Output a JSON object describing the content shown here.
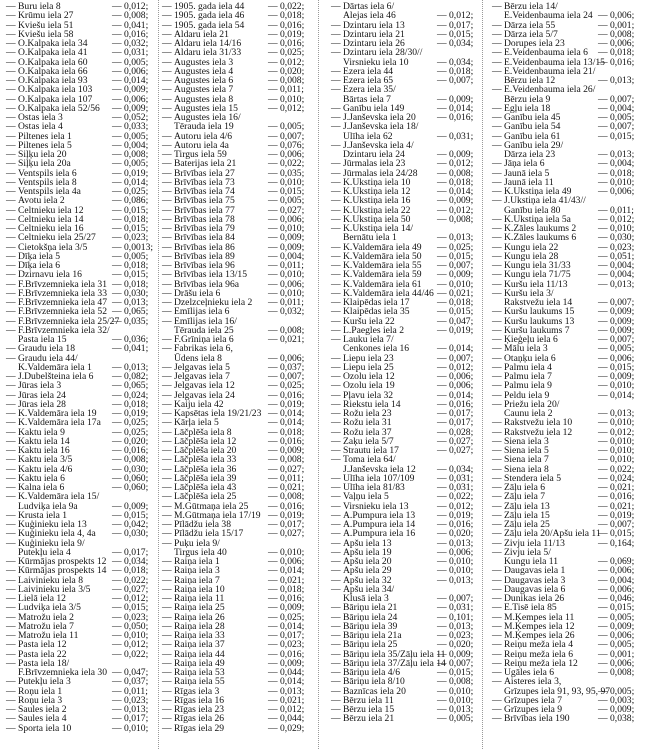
{
  "dash": "—",
  "columns": [
    [
      [
        "Buru iela 8",
        "0,012"
      ],
      [
        "Krūmu iela 27",
        "0,008"
      ],
      [
        "Kviešu iela 51",
        "0,041"
      ],
      [
        "Kviešu iela 58",
        "0,016"
      ],
      [
        "O.Kalpaka iela 34",
        "0,032"
      ],
      [
        "O.Kalpaka iela 41",
        "0,031"
      ],
      [
        "O.Kalpaka iela 60",
        "0,005"
      ],
      [
        "O.Kalpaka iela 66",
        "0,006"
      ],
      [
        "O.Kalpaka iela 93",
        "0,014"
      ],
      [
        "O.Kalpaka iela 103",
        "0,009"
      ],
      [
        "O.Kalpaka iela 107",
        "0,006"
      ],
      [
        "O.Kalpaka iela 52/56",
        "0,009"
      ],
      [
        "Ostas iela 3",
        "0,052"
      ],
      [
        "Ostas iela 4",
        "0,033"
      ],
      [
        "Piltenes iela 1",
        "0,005"
      ],
      [
        "Piltenes iela 5",
        "0,004"
      ],
      [
        "Siļķu iela 20",
        "0,008"
      ],
      [
        "Siļķu iela 20a",
        "0,005"
      ],
      [
        "Ventspils iela 6",
        "0,019"
      ],
      [
        "Ventspils iela 8",
        "0,014"
      ],
      [
        "Ventspils iela 4a",
        "0,025"
      ],
      [
        "Avotu iela 2",
        "0,086"
      ],
      [
        "Celtnieku iela 12",
        "0,015"
      ],
      [
        "Celtnieku iela 14",
        "0,018"
      ],
      [
        "Celtnieku iela 16",
        "0,015"
      ],
      [
        "Celtnieku iela 25/27",
        "0,023"
      ],
      [
        "Cietokšņa iela 3/5",
        "0,0013"
      ],
      [
        "Dīķa iela 5",
        "0,005"
      ],
      [
        "Dīķa iela 6",
        "0,018"
      ],
      [
        "Dzirnavu iela 16",
        "0,015"
      ],
      [
        "F.Brīvzemnieka iela 31",
        "0,018"
      ],
      [
        "F.Brīvzemnieka iela 33",
        "0,030"
      ],
      [
        "F.Brīvzemnieka iela 47",
        "0,013"
      ],
      [
        "F.Brīvzemnieka iela 52",
        "0,065"
      ],
      [
        "F.Brīvzemnieka iela 25/27",
        "0,035"
      ],
      [
        "F.Brīvzemnieka iela 32/",
        "Pasta iela 15",
        "0,036"
      ],
      [
        "Graudu iela 18",
        "0,041"
      ],
      [
        "Graudu iela 44/",
        "K.Valdemāra iela 1",
        "0,013"
      ],
      [
        "J.Dubelšteina iela 6",
        "0,082"
      ],
      [
        "Jūras iela 3",
        "0,065"
      ],
      [
        "Jūras iela 24",
        "0,024"
      ],
      [
        "Jūras iela 28",
        "0,018"
      ],
      [
        "K.Valdemāra iela 19",
        "0,019"
      ],
      [
        "K.Valdemāra iela 17a",
        "0,025"
      ],
      [
        "Kaktu iela 9",
        "0,025"
      ],
      [
        "Kaktu iela 14",
        "0,020"
      ],
      [
        "Kaktu iela 16",
        "0,016"
      ],
      [
        "Kaktu iela 3/5",
        "0,008"
      ],
      [
        "Kaktu iela 4/6",
        "0,030"
      ],
      [
        "Kaktu iela 6",
        "0,060"
      ],
      [
        "Kalna iela 6",
        "0,060"
      ],
      [
        "K.Valdemāra iela 15/",
        "Ludviķa iela 9a",
        "0,009"
      ],
      [
        "Krusta iela 1",
        "0,015"
      ],
      [
        "Kuģinieku iela 13",
        "0,042"
      ],
      [
        "Kuģinieku iela 4, 4a",
        "0,030"
      ],
      [
        "Kuģinieku iela 9/",
        "Putekļu iela 4",
        "0,017"
      ],
      [
        "Kūrmājas prospekts 12",
        "0,034"
      ],
      [
        "Kūrmājas prospekts 14",
        "0,018"
      ],
      [
        "Laivinieku iela 8",
        "0,022"
      ],
      [
        "Laivinieku iela 3/5",
        "0,027"
      ],
      [
        "Lielā iela 12",
        "0,012"
      ],
      [
        "Ludviķa iela 3/5",
        "0,015"
      ],
      [
        "Matrožu iela 2",
        "0,023"
      ],
      [
        "Matrožu iela 7",
        "0,050"
      ],
      [
        "Matrožu iela 11",
        "0,010"
      ],
      [
        "Pasta iela 12",
        "0,012"
      ],
      [
        "Pasta iela 22",
        "0,022"
      ],
      [
        "Pasta iela 18/",
        "F.Brīvzemnieka iela 30",
        "0,047"
      ],
      [
        "Putekļu iela 3",
        "0,037"
      ],
      [
        "Roņu iela 1",
        "0,011"
      ],
      [
        "Roņu iela 3",
        "0,023"
      ],
      [
        "Saules iela 2",
        "0,013"
      ],
      [
        "Saules iela 4",
        "0,017"
      ],
      [
        "Sporta iela 10",
        "0,010"
      ]
    ],
    [
      [
        "1905. gada iela 44",
        "0,022"
      ],
      [
        "1905. gada iela 46",
        "0,018"
      ],
      [
        "1905. gada iela 54",
        "0,016"
      ],
      [
        "Aldaru iela 21",
        "0,019"
      ],
      [
        "Aldaru iela 14/16",
        "0,016"
      ],
      [
        "Aldaru iela 31/33",
        "0,025"
      ],
      [
        "Augustes iela 3",
        "0,012"
      ],
      [
        "Augustes iela 4",
        "0,020"
      ],
      [
        "Augustes iela 6",
        "0,008"
      ],
      [
        "Augustes iela 7",
        "0,011"
      ],
      [
        "Augustes iela 8",
        "0,010"
      ],
      [
        "Augustes iela 15",
        "0,012"
      ],
      [
        "Augustes iela 16/",
        "Tērauda iela 19",
        "0,005"
      ],
      [
        "Autoru iela 4/6",
        "0,007"
      ],
      [
        "Autoru iela 4a",
        "0,076"
      ],
      [
        "Tirgus iela 59",
        "0,006"
      ],
      [
        "Baterijas iela 21",
        "0,022"
      ],
      [
        "Brīvības iela 27",
        "0,035"
      ],
      [
        "Brīvības iela 73",
        "0,010"
      ],
      [
        "Brīvības iela 74",
        "0,015"
      ],
      [
        "Brīvības iela 75",
        "0,005"
      ],
      [
        "Brīvības iela 77",
        "0,027"
      ],
      [
        "Brīvības iela 78",
        "0,006"
      ],
      [
        "Brīvības iela 79",
        "0,010"
      ],
      [
        "Brīvības iela 84",
        "0,009"
      ],
      [
        "Brīvības iela 86",
        "0,009"
      ],
      [
        "Brīvības iela 89",
        "0,004"
      ],
      [
        "Brīvības iela 96",
        "0,011"
      ],
      [
        "Brīvības iela 13/15",
        "0,010"
      ],
      [
        "Brīvības iela 96a",
        "0,006"
      ],
      [
        "Drāšu iela 6",
        "0,010"
      ],
      [
        "Dzelzceļnieku iela 2",
        "0,011"
      ],
      [
        "Emīlijas iela 6",
        "0,032"
      ],
      [
        "Emīlijas iela 16/",
        "Tērauda iela 25",
        "0,008"
      ],
      [
        "F.Grīniņa iela 6",
        "0,021"
      ],
      [
        "Fabrikas iela 6,",
        "Ūdens iela 8",
        "0,006"
      ],
      [
        "Jelgavas iela 5",
        "0,037"
      ],
      [
        "Jelgavas iela 7",
        "0,007"
      ],
      [
        "Jelgavas iela 12",
        "0,025"
      ],
      [
        "Jelgavas iela 24",
        "0,016"
      ],
      [
        "Kaiju iela 42",
        "0,019"
      ],
      [
        "Kapsētas iela 19/21/23",
        "0,014"
      ],
      [
        "Kārļa iela 5",
        "0,014"
      ],
      [
        "Lāčplēša iela 8",
        "0,018"
      ],
      [
        "Lāčplēša iela 12",
        "0,016"
      ],
      [
        "Lāčplēša iela 20",
        "0,009"
      ],
      [
        "Lāčplēša iela 33",
        "0,008"
      ],
      [
        "Lāčplēša iela 36",
        "0,027"
      ],
      [
        "Lāčplēša iela 39",
        "0,011"
      ],
      [
        "Lāčplēša iela 43",
        "0,021"
      ],
      [
        "Lāčplēša iela 25",
        "0,008"
      ],
      [
        "M.Gūtmaņa iela 25",
        "0,016"
      ],
      [
        "M.Gūtmaņa iela 17/19",
        "0,019"
      ],
      [
        "Pīlādžu iela 38",
        "0,017"
      ],
      [
        "Pīlādžu iela 15/17",
        "0,027"
      ],
      [
        "Puķu iela 9/",
        "Tirgus iela 40",
        "0,010"
      ],
      [
        "Raiņa iela 1",
        "0,006"
      ],
      [
        "Raiņa iela 3",
        "0,014"
      ],
      [
        "Raiņa iela 7",
        "0,021"
      ],
      [
        "Raiņa iela 10",
        "0,018"
      ],
      [
        "Raiņa iela 11",
        "0,016"
      ],
      [
        "Raiņa iela 25",
        "0,009"
      ],
      [
        "Raiņa iela 26",
        "0,025"
      ],
      [
        "Raiņa iela 28",
        "0,014"
      ],
      [
        "Raiņa iela 33",
        "0,017"
      ],
      [
        "Raiņa iela 37",
        "0,023"
      ],
      [
        "Raiņa iela 44",
        "0,016"
      ],
      [
        "Raiņa iela 49",
        "0,009"
      ],
      [
        "Raiņa iela 53",
        "0,044"
      ],
      [
        "Raiņa iela 55",
        "0,014"
      ],
      [
        "Rīgas iela 3",
        "0,013"
      ],
      [
        "Rīgas iela 16",
        "0,021"
      ],
      [
        "Rīgas iela 23",
        "0,012"
      ],
      [
        "Rīgas iela 26",
        "0,044"
      ],
      [
        "Rīgas iela 29",
        "0,029"
      ]
    ],
    [
      [
        "Dārtas iela 6/",
        "Alejas iela 46",
        "0,012"
      ],
      [
        "Dzintaru iela 13",
        "0,017"
      ],
      [
        "Dzintaru iela 21",
        "0,015"
      ],
      [
        "Dzintaru iela 26",
        "0,034"
      ],
      [
        "Dzintaru iela 28/30//",
        "Virsnieku iela 10",
        "0,034"
      ],
      [
        "Ezera iela 44",
        "0,018"
      ],
      [
        "Ezera iela 65",
        "0,007"
      ],
      [
        "Ezera iela 35/",
        "Bārtas iela 7",
        "0,009"
      ],
      [
        "Ganību iela 149",
        "0,014"
      ],
      [
        "J.Janševska iela 20",
        "0,016"
      ],
      [
        "J.Janševska iela 18/",
        "Ulīha iela 62",
        "0,031"
      ],
      [
        "J.Janševska iela 4/",
        "Dzintaru iela 24",
        "0,009"
      ],
      [
        "Jūrmalas iela 23",
        "0,012"
      ],
      [
        "Jūrmalas iela 24/28",
        "0,008"
      ],
      [
        "K.Ukstiņa iela 10",
        "0,018"
      ],
      [
        "K.Ukstiņa iela 12",
        "0,014"
      ],
      [
        "K.Ukstiņa iela 16",
        "0,009"
      ],
      [
        "K.Ukstiņa iela 22",
        "0,012"
      ],
      [
        "K.Ukstiņa iela 50",
        "0,008"
      ],
      [
        "K.Ukstiņa iela 14/",
        "Bernātu iela 1",
        "0,013"
      ],
      [
        "K.Valdemāra iela 49",
        "0,025"
      ],
      [
        "K.Valdemāra iela 50",
        "0,015"
      ],
      [
        "K.Valdemāra iela 55",
        "0,007"
      ],
      [
        "K.Valdemāra iela 59",
        "0,009"
      ],
      [
        "K.Valdemāra iela 61",
        "0,010"
      ],
      [
        "K.Valdemāra iela 44/46",
        "0,021"
      ],
      [
        "Klaipēdas iela 17",
        "0,018"
      ],
      [
        "Klaipēdas iela 35",
        "0,015"
      ],
      [
        "Kuršu iela 22",
        "0,047"
      ],
      [
        "L.Paegles iela 2",
        "0,019"
      ],
      [
        "Lauku iela 7/",
        "Cenkones iela 16",
        "0,014"
      ],
      [
        "Liepu iela 23",
        "0,007"
      ],
      [
        "Liepu iela 25",
        "0,012"
      ],
      [
        "Ozolu iela 12",
        "0,006"
      ],
      [
        "Ozolu iela 19",
        "0,006"
      ],
      [
        "Pļavu iela 32",
        "0,014"
      ],
      [
        "Riekstu iela 14",
        "0,016"
      ],
      [
        "Rožu iela 23",
        "0,017"
      ],
      [
        "Rožu iela 31",
        "0,017"
      ],
      [
        "Rožu iela 37",
        "0,028"
      ],
      [
        "Zaķu iela 5/7",
        "0,027"
      ],
      [
        "Strautu iela 17",
        "0,027"
      ],
      [
        "Toma iela 64/",
        "J.Janševska iela 12",
        "0,034"
      ],
      [
        "Ulīha iela 107/109",
        "0,031"
      ],
      [
        "Ulīha iela 81/83",
        "0,031"
      ],
      [
        "Vaļņu iela 5",
        "0,022"
      ],
      [
        "Virsnieku iela 13",
        "0,012"
      ],
      [
        "A.Pumpura iela 13",
        "0,019"
      ],
      [
        "A.Pumpura iela 14",
        "0,016"
      ],
      [
        "A.Pumpura iela 16",
        "0,020"
      ],
      [
        "Apšu iela 13",
        "0,013"
      ],
      [
        "Apšu iela 19",
        "0,006"
      ],
      [
        "Apšu iela 20",
        "0,010"
      ],
      [
        "Apšu iela 29",
        "0,010"
      ],
      [
        "Apšu iela 32",
        "0,013"
      ],
      [
        "Apšu iela 34/",
        "Klusā iela 3",
        "0,007"
      ],
      [
        "Bāriņu iela 21",
        "0,031"
      ],
      [
        "Bāriņu iela 24",
        "0,101"
      ],
      [
        "Bāriņu iela 39",
        "0,013"
      ],
      [
        "Bāriņu iela 21a",
        "0,023"
      ],
      [
        "Bāriņu iela 25",
        "0,020"
      ],
      [
        "Bāriņu iela 35/Zāļu iela 11",
        "0,009"
      ],
      [
        "Bāriņu iela 37/Zāļu iela 14",
        "0,007"
      ],
      [
        "Bāriņu iela 4/6",
        "0,015"
      ],
      [
        "Bāriņu iela 8/10",
        "0,008"
      ],
      [
        "Baznīcas iela 20",
        "0,010"
      ],
      [
        "Bērzu iela 11",
        "0,010"
      ],
      [
        "Bērzu iela 15",
        "0,013"
      ],
      [
        "Bērzu iela 21",
        "0,005"
      ]
    ],
    [
      [
        "Bērzu iela 14/",
        "E.Veidenbauma iela 24",
        "0,006"
      ],
      [
        "Dārza iela 55",
        "0,001"
      ],
      [
        "Dārza iela 5/7",
        "0,008"
      ],
      [
        "Dorupes iela 23",
        "0,006"
      ],
      [
        "E.Veidenbauma iela 6",
        "0,018"
      ],
      [
        "E.Veidenbauma iela 13/15",
        "0,016"
      ],
      [
        "E.Veidenbauma iela 21/",
        "Bērzu iela 12",
        "0,013"
      ],
      [
        "E.Veidenbauma iela 26/",
        "Bērzu iela 9",
        "0,007"
      ],
      [
        "Egļu iela 18",
        "0,004"
      ],
      [
        "Ganību iela 45",
        "0,005"
      ],
      [
        "Ganību iela 54",
        "0,007"
      ],
      [
        "Ganību iela 61",
        "0,015"
      ],
      [
        "Ganību iela 29/",
        "Dārza iela 23",
        "0,013"
      ],
      [
        "Jāņa iela 6",
        "0,004"
      ],
      [
        "Jaunā iela 5",
        "0,018"
      ],
      [
        "Jaunā iela 11",
        "0,010"
      ],
      [
        "K.Ukstiņa iela 49",
        "0,006"
      ],
      [
        "J.Ukstiņa iela 41/43//",
        "Ganību iela 80",
        "0,011"
      ],
      [
        "K.Ukstiņa iela 5a",
        "0,012"
      ],
      [
        "K.Zāles laukums 2",
        "0,010"
      ],
      [
        "K.Zāles laukums 6",
        "0,030"
      ],
      [
        "Kungu iela 22",
        "0,023"
      ],
      [
        "Kungu iela 28",
        "0,051"
      ],
      [
        "Kungu iela 31/33",
        "0,004"
      ],
      [
        "Kungu iela 71/75",
        "0,004"
      ],
      [
        "Kuršu iela 11/13",
        "0,013"
      ],
      [
        "Kuršu iela 3/",
        "Rakstvežu iela 14",
        "0,007"
      ],
      [
        "Kuršu laukums 15",
        "0,009"
      ],
      [
        "Kuršu laukums 13",
        "0,009"
      ],
      [
        "Kuršu laukums 7",
        "0,009"
      ],
      [
        "Ķieģeļu iela 6",
        "0,007"
      ],
      [
        "Mālu iela 3",
        "0,005"
      ],
      [
        "Otaņķu iela 6",
        "0,006"
      ],
      [
        "Palmu iela 4",
        "0,015"
      ],
      [
        "Palmu iela 7",
        "0,009"
      ],
      [
        "Palmu iela 9",
        "0,010"
      ],
      [
        "Peldu iela 9",
        "0,014"
      ],
      [
        "Priežu iela 20/",
        "Caunu iela 2",
        "0,013"
      ],
      [
        "Rakstvežu iela 10",
        "0,010"
      ],
      [
        "Rakstvežu iela 12",
        "0,012"
      ],
      [
        "Siena iela 3",
        "0,010"
      ],
      [
        "Siena iela 5",
        "0,010"
      ],
      [
        "Siena iela 7",
        "0,010"
      ],
      [
        "Siena iela 8",
        "0,022"
      ],
      [
        "Stendera iela 5",
        "0,024"
      ],
      [
        "Zāļu iela 6",
        "0,021"
      ],
      [
        "Zāļu iela 7",
        "0,016"
      ],
      [
        "Zāļu iela 13",
        "0,021"
      ],
      [
        "Zāļu iela 15",
        "0,019"
      ],
      [
        "Zāļu iela 25",
        "0,007"
      ],
      [
        "Zāļu iela 20/Apšu iela 11",
        "0,015"
      ],
      [
        "Zivju iela 11/13",
        "0,164"
      ],
      [
        "Zivju iela 5/",
        "Kungu iela 11",
        "0,069"
      ],
      [
        "Daugavas iela 1",
        "0,006"
      ],
      [
        "Daugavas iela 3",
        "0,004"
      ],
      [
        "Daugavas iela 6",
        "0,006"
      ],
      [
        "Dunikas iela 26",
        "0,046"
      ],
      [
        "E.Tisē iela 85",
        "0,015"
      ],
      [
        "M.Ķempes iela 11",
        "0,005"
      ],
      [
        "M.Ķempes iela 12",
        "0,009"
      ],
      [
        "M.Ķempes iela 26",
        "0,006"
      ],
      [
        "Reiņu meža iela 4",
        "0,005"
      ],
      [
        "Reiņu meža iela 6",
        "0,001"
      ],
      [
        "Reiņu meža iela 12",
        "0,006"
      ],
      [
        "Ugāles iela 6",
        "0,008"
      ],
      [
        "Aisteres iela 3,",
        "Grīzupes iela 91, 93, 95, 97",
        "0,005"
      ],
      [
        "Grīzupes iela 7",
        "0,003"
      ],
      [
        "Grīzupes iela 9",
        "0,009"
      ],
      [
        "Brīvības iela 190",
        "0,038"
      ]
    ]
  ]
}
